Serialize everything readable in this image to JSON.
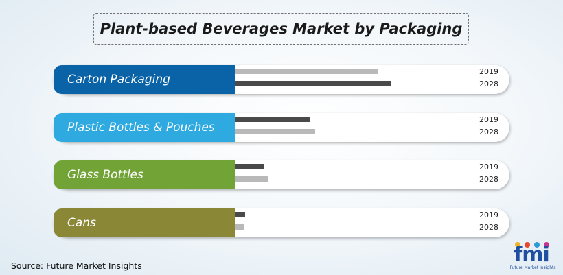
{
  "title": "Plant-based Beverages Market by Packaging",
  "source": "Source: Future Market Insights",
  "logo": {
    "text": "fmi",
    "subtitle": "Future Market Insights"
  },
  "colors": {
    "bar_dark": "#4a4a4a",
    "bar_light": "#b9b9b9"
  },
  "chart_data": {
    "type": "bar",
    "orientation": "horizontal",
    "categories": [
      "Carton Packaging",
      "Plastic Bottles & Pouches",
      "Glass Bottles",
      "Cans"
    ],
    "category_colors": [
      "#0a63a7",
      "#2eaae1",
      "#72a336",
      "#8a8837"
    ],
    "years": [
      "2019",
      "2028"
    ],
    "series": [
      {
        "name": "2019",
        "values": [
          208,
          110,
          42,
          15
        ]
      },
      {
        "name": "2028",
        "values": [
          228,
          117,
          48,
          13
        ]
      }
    ],
    "bar_colors": [
      [
        "#b9b9b9",
        "#4a4a4a"
      ],
      [
        "#4a4a4a",
        "#b9b9b9"
      ],
      [
        "#4a4a4a",
        "#b9b9b9"
      ],
      [
        "#4a4a4a",
        "#b9b9b9"
      ]
    ],
    "xlim": [
      0,
      300
    ],
    "grid": false
  }
}
